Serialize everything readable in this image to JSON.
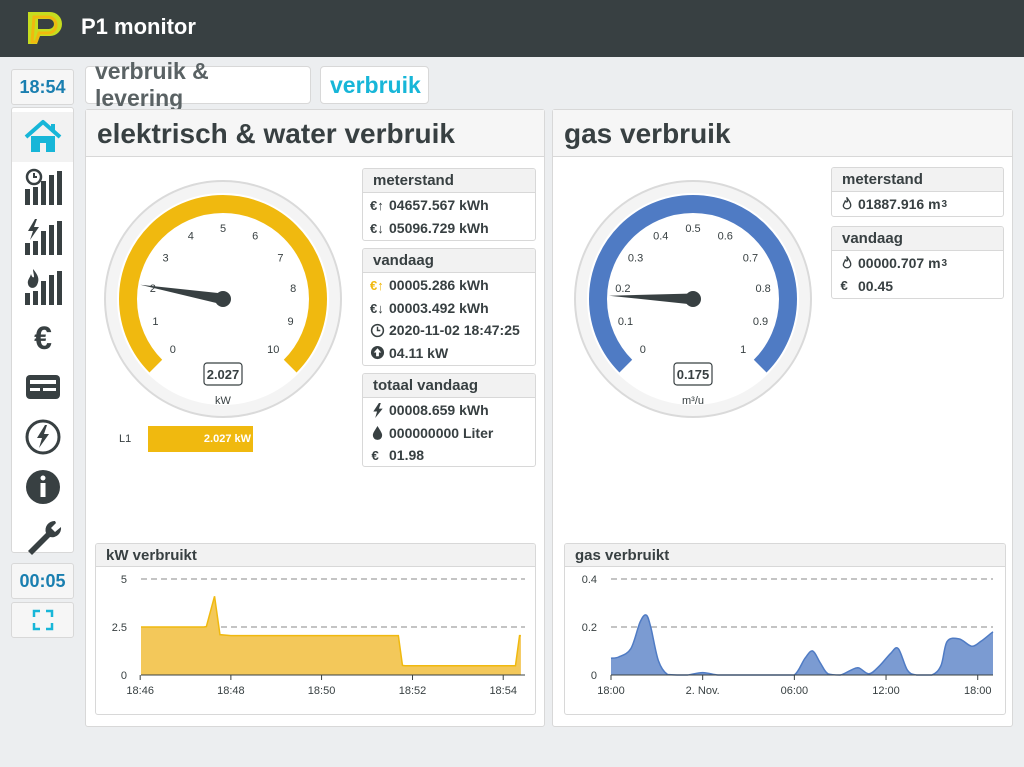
{
  "header": {
    "title": "P1 monitor"
  },
  "sidebar": {
    "clock_top": "18:54",
    "clock_bottom": "00:05",
    "items": [
      {
        "icon": "home-icon",
        "active": true
      },
      {
        "icon": "history-bars-icon"
      },
      {
        "icon": "power-bars-icon"
      },
      {
        "icon": "gas-bars-icon"
      },
      {
        "icon": "euro-icon"
      },
      {
        "icon": "meter-card-icon"
      },
      {
        "icon": "power-circle-icon"
      },
      {
        "icon": "info-icon"
      },
      {
        "icon": "wrench-icon"
      }
    ],
    "fullscreen_icon": "fullscreen-icon"
  },
  "tabs": [
    {
      "label": "verbruik & levering"
    },
    {
      "label": "verbruik"
    }
  ],
  "electric": {
    "title": "elektrisch & water verbruik",
    "gauge": {
      "value": 2.027,
      "value_text": "2.027",
      "unit": "kW",
      "min": 0,
      "max": 10,
      "ticks": [
        "0",
        "1",
        "2",
        "3",
        "4",
        "5",
        "6",
        "7",
        "8",
        "9",
        "10"
      ],
      "color": "#f0b90f"
    },
    "phase": {
      "label": "L1",
      "value_text": "2.027 kW",
      "value": 2.027,
      "max": 10
    },
    "meterstand": {
      "title": "meterstand",
      "rows": [
        {
          "icon": "import-arrow-icon",
          "text": "04657.567 kWh"
        },
        {
          "icon": "export-arrow-icon",
          "text": "05096.729 kWh"
        }
      ]
    },
    "vandaag": {
      "title": "vandaag",
      "rows": [
        {
          "icon": "import-arrow-icon",
          "text": "00005.286 kWh"
        },
        {
          "icon": "export-arrow-icon",
          "text": "00003.492 kWh"
        },
        {
          "icon": "clock-icon",
          "text": "2020-11-02 18:47:25"
        },
        {
          "icon": "peak-up-icon",
          "text": "04.11 kW"
        }
      ]
    },
    "totaal": {
      "title": "totaal vandaag",
      "rows": [
        {
          "icon": "lightning-icon",
          "text": "00008.659 kWh"
        },
        {
          "icon": "water-drop-icon",
          "text": "000000000 Liter"
        },
        {
          "icon": "euro-small-icon",
          "text": "01.98"
        }
      ]
    }
  },
  "gas": {
    "title": "gas verbruik",
    "gauge": {
      "value": 0.175,
      "value_text": "0.175",
      "unit": "m³/u",
      "min": 0,
      "max": 1,
      "ticks": [
        "0",
        "0.1",
        "0.2",
        "0.3",
        "0.4",
        "0.5",
        "0.6",
        "0.7",
        "0.8",
        "0.9",
        "1"
      ],
      "color": "#4f7bc4"
    },
    "meterstand": {
      "title": "meterstand",
      "value": "01887.916 m",
      "unit_sup": "3"
    },
    "vandaag": {
      "title": "vandaag",
      "value": "00000.707 m",
      "unit_sup": "3",
      "cost": "00.45"
    }
  },
  "chart_data": [
    {
      "type": "area",
      "title": "kW verbruikt",
      "color": "#f0b90f",
      "fill": "#f3c85a",
      "ylim": [
        0,
        5
      ],
      "yticks": [
        "5",
        "2.5",
        "0"
      ],
      "xlim": [
        18.767,
        18.908
      ],
      "xticks": [
        {
          "v": 18.7667,
          "label": "18:46"
        },
        {
          "v": 18.8,
          "label": "18:48"
        },
        {
          "v": 18.8333,
          "label": "18:50"
        },
        {
          "v": 18.8667,
          "label": "18:52"
        },
        {
          "v": 18.9,
          "label": "18:54"
        }
      ],
      "x": [
        18.767,
        18.79,
        18.791,
        18.794,
        18.796,
        18.8,
        18.81,
        18.83,
        18.85,
        18.8615,
        18.863,
        18.864,
        18.88,
        18.9,
        18.9045,
        18.906,
        18.9065
      ],
      "values": [
        2.5,
        2.5,
        2.52,
        4.1,
        2.1,
        2.05,
        2.05,
        2.05,
        2.05,
        2.05,
        0.5,
        0.48,
        0.48,
        0.48,
        0.48,
        2.05,
        2.05
      ]
    },
    {
      "type": "area",
      "title": "gas verbruikt",
      "color": "#4f7bc4",
      "fill": "#7b9bd2",
      "ylim": [
        0,
        0.4
      ],
      "yticks": [
        "0.4",
        "0.2",
        "0"
      ],
      "xlim": [
        0,
        25
      ],
      "xticks": [
        {
          "v": 0,
          "label": "18:00"
        },
        {
          "v": 6,
          "label": "2. Nov."
        },
        {
          "v": 12,
          "label": "06:00"
        },
        {
          "v": 18,
          "label": "12:00"
        },
        {
          "v": 24,
          "label": "18:00"
        }
      ],
      "x": [
        0,
        0.5,
        1.3,
        1.9,
        2.3,
        2.6,
        3.1,
        3.7,
        4.5,
        5,
        6,
        7,
        8,
        9,
        10,
        11,
        12,
        12.7,
        13.2,
        13.7,
        14.2,
        15,
        15.7,
        16.2,
        16.9,
        17.6,
        18.3,
        18.8,
        19.4,
        20,
        21,
        21.6,
        22,
        22.8,
        23.6,
        24.2,
        24.8,
        25
      ],
      "values": [
        0.07,
        0.075,
        0.11,
        0.22,
        0.25,
        0.2,
        0.06,
        0.002,
        0,
        0,
        0.01,
        0,
        0,
        0,
        0,
        0,
        0,
        0.07,
        0.1,
        0.05,
        0.005,
        0,
        0.02,
        0.03,
        0.005,
        0.04,
        0.09,
        0.11,
        0.02,
        0,
        0,
        0.04,
        0.14,
        0.15,
        0.12,
        0.14,
        0.17,
        0.18
      ]
    }
  ]
}
